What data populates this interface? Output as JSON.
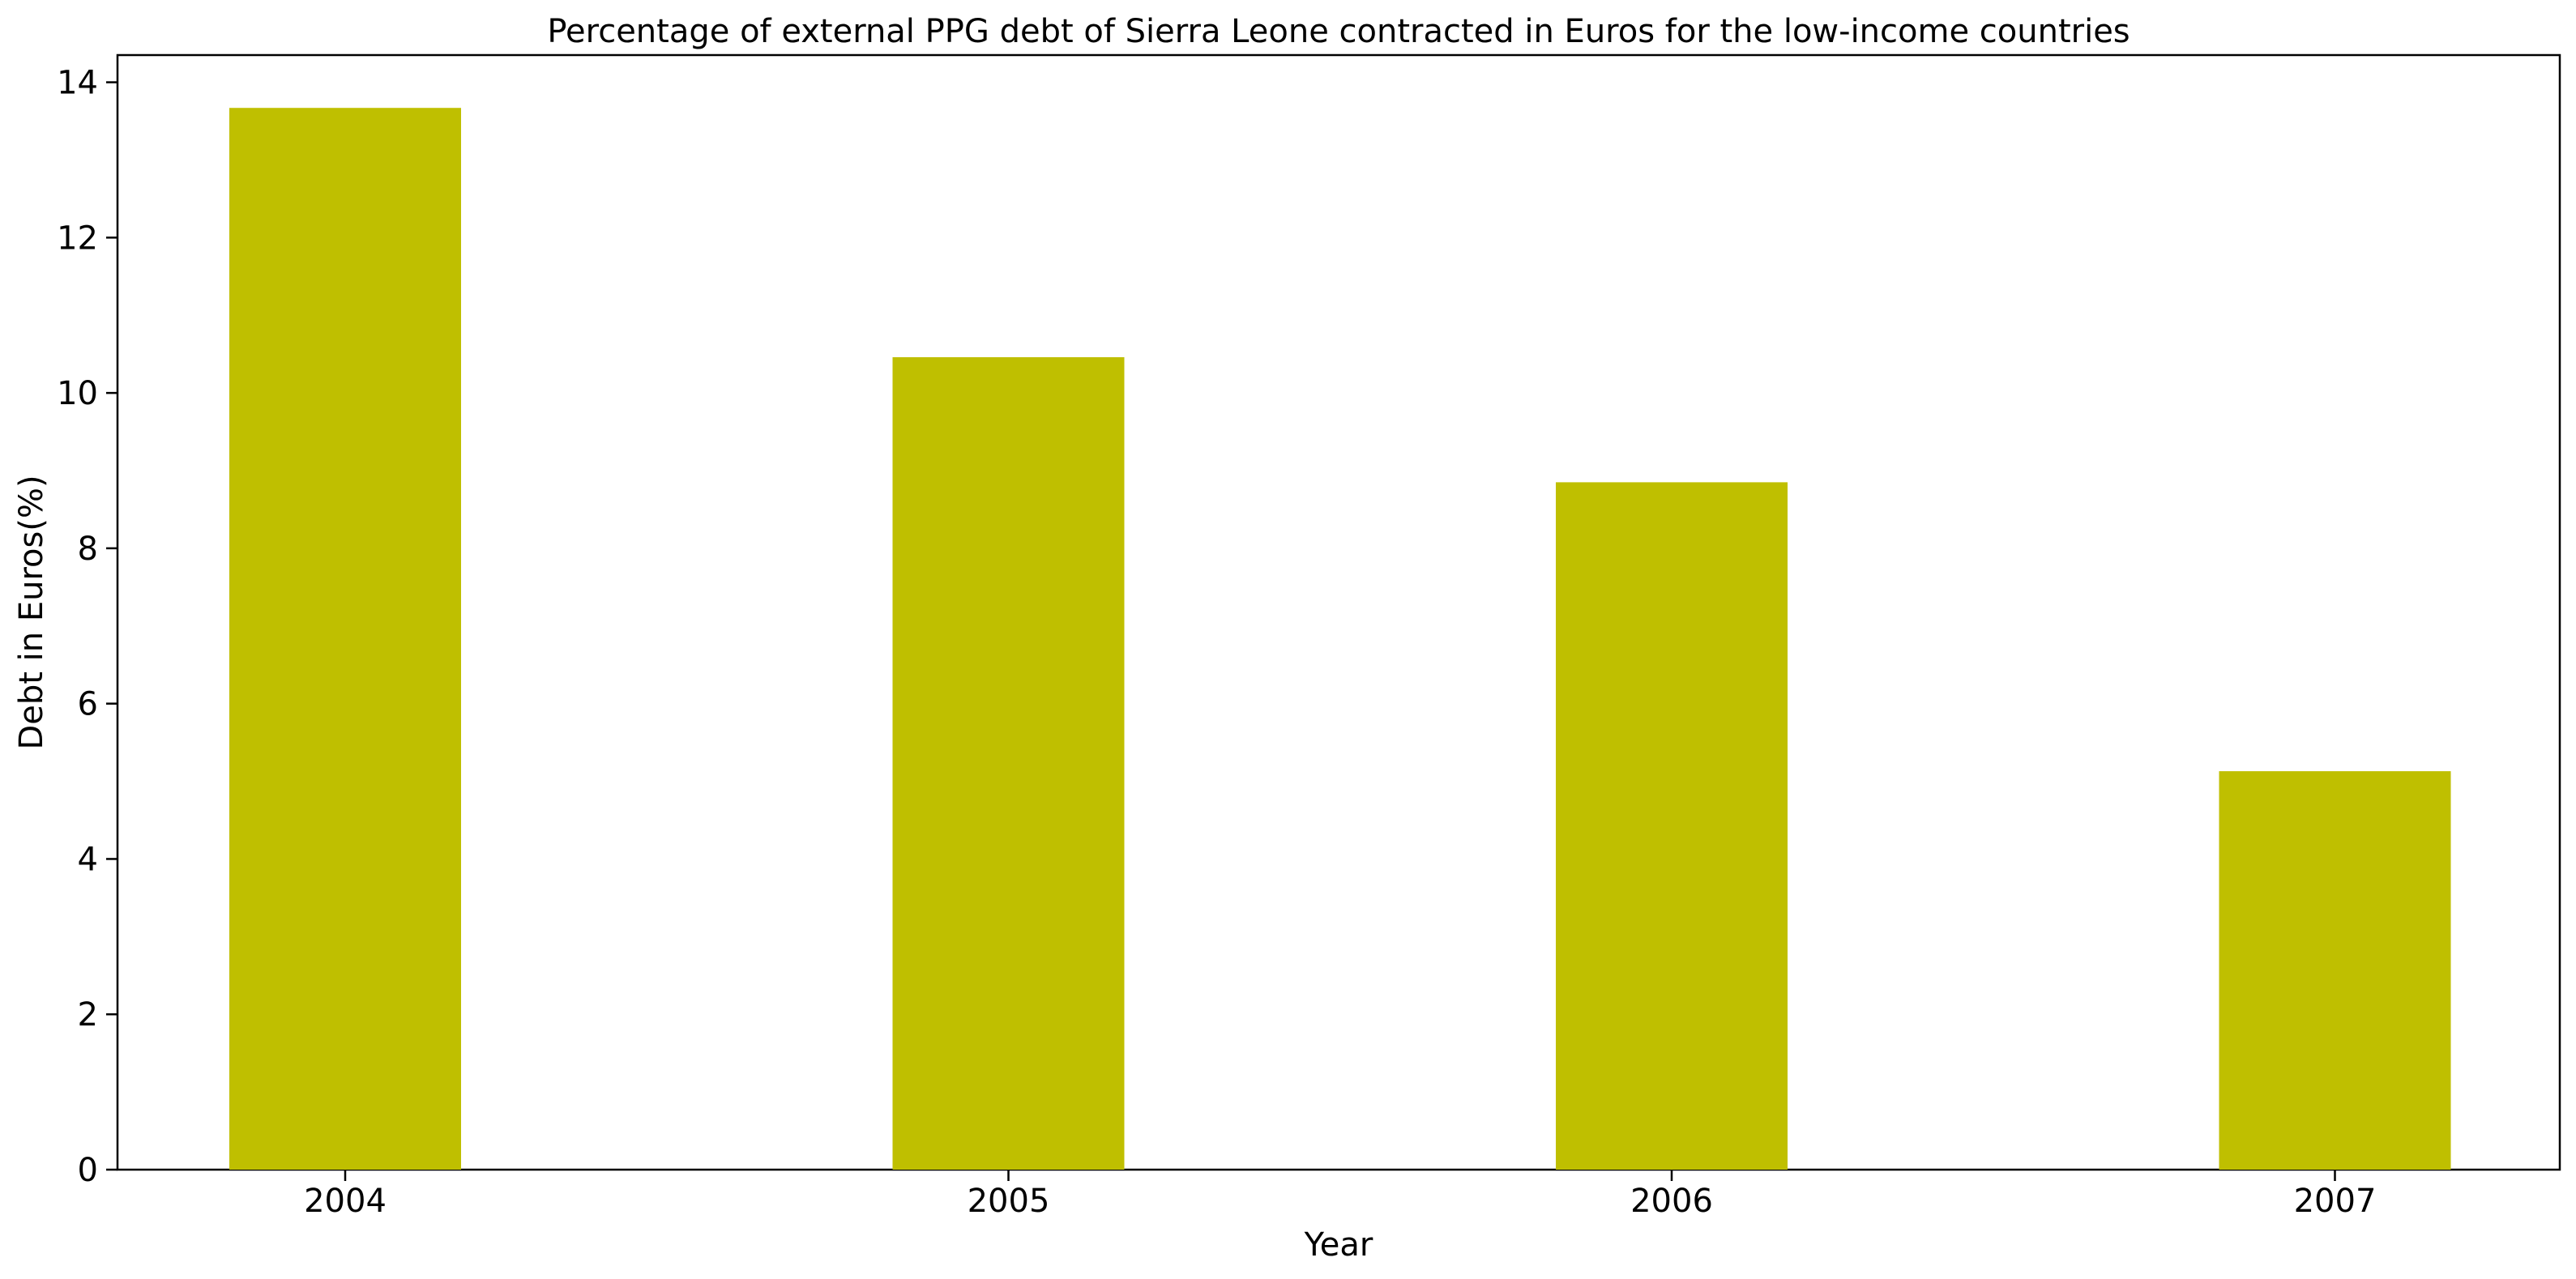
{
  "chart_data": {
    "type": "bar",
    "title": "Percentage of external PPG debt of Sierra Leone contracted in Euros for the low-income countries",
    "xlabel": "Year",
    "ylabel": "Debt in Euros(%)",
    "categories": [
      "2004",
      "2005",
      "2006",
      "2007"
    ],
    "values": [
      13.67,
      10.46,
      8.85,
      5.13
    ],
    "ylim": [
      0,
      14.35
    ],
    "yticks": [
      0,
      2,
      4,
      6,
      8,
      10,
      12,
      14
    ],
    "bar_color": "#bfbf00",
    "grid": false,
    "legend": "none"
  }
}
